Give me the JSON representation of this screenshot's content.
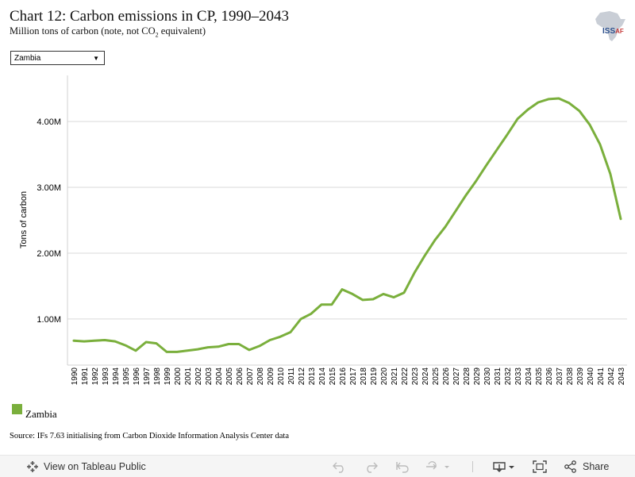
{
  "header": {
    "title": "Chart 12: Carbon emissions in CP, 1990–2043",
    "subtitle_main": "Million tons of carbon (note, not CO",
    "subtitle_sub": "2",
    "subtitle_end": " equivalent)",
    "logo_text_main": "ISS",
    "logo_text_accent": "AF"
  },
  "filter": {
    "selected": "Zambia"
  },
  "chart_data": {
    "type": "line",
    "ylabel": "Tons of carbon",
    "xlabel": "",
    "ylim": [
      300000,
      4700000
    ],
    "yticks": [
      1000000,
      2000000,
      3000000,
      4000000
    ],
    "ytick_labels": [
      "1.00M",
      "2.00M",
      "3.00M",
      "4.00M"
    ],
    "grid": true,
    "x": [
      "1990",
      "1991",
      "1992",
      "1993",
      "1994",
      "1995",
      "1996",
      "1997",
      "1998",
      "1999",
      "2000",
      "2001",
      "2002",
      "2003",
      "2004",
      "2005",
      "2006",
      "2007",
      "2008",
      "2009",
      "2010",
      "2011",
      "2012",
      "2013",
      "2014",
      "2015",
      "2016",
      "2017",
      "2018",
      "2019",
      "2020",
      "2021",
      "2022",
      "2023",
      "2024",
      "2025",
      "2026",
      "2027",
      "2028",
      "2029",
      "2030",
      "2031",
      "2032",
      "2033",
      "2034",
      "2035",
      "2036",
      "2037",
      "2038",
      "2039",
      "2040",
      "2041",
      "2042",
      "2043"
    ],
    "series": [
      {
        "name": "Zambia",
        "color": "#7aaf3c",
        "values": [
          670000,
          660000,
          670000,
          680000,
          660000,
          600000,
          520000,
          650000,
          630000,
          500000,
          500000,
          520000,
          540000,
          570000,
          580000,
          620000,
          620000,
          530000,
          590000,
          680000,
          730000,
          800000,
          1000000,
          1080000,
          1220000,
          1220000,
          1450000,
          1380000,
          1290000,
          1300000,
          1380000,
          1330000,
          1400000,
          1700000,
          1960000,
          2200000,
          2400000,
          2640000,
          2880000,
          3100000,
          3340000,
          3570000,
          3800000,
          4040000,
          4180000,
          4290000,
          4340000,
          4350000,
          4280000,
          4160000,
          3950000,
          3650000,
          3200000,
          2520000
        ]
      }
    ],
    "legend": {
      "position": "bottom-left",
      "label": "Zambia"
    }
  },
  "footer": {
    "source": "Source: IFs 7.63 initialising from Carbon Dioxide Information Analysis Center data"
  },
  "toolbar": {
    "view_label": "View on Tableau Public",
    "share_label": "Share"
  },
  "icons": {
    "tableau": "tableau-logo-icon",
    "undo": "undo-icon",
    "redo": "redo-icon",
    "revert": "revert-icon",
    "refresh": "refresh-icon",
    "download": "download-icon",
    "fullscreen": "fullscreen-icon",
    "share": "share-icon"
  }
}
